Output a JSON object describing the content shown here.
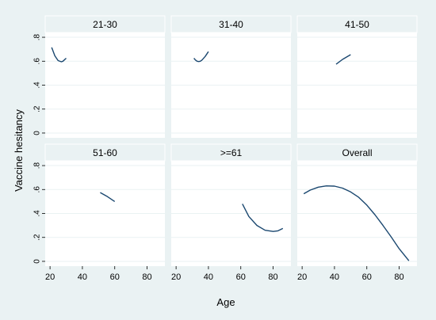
{
  "chart_data": {
    "type": "line",
    "layout": "small-multiples",
    "ylabel": "Vaccine hesitancy",
    "xlabel": "Age",
    "xlim": [
      17,
      91
    ],
    "ylim": [
      -0.04,
      0.84
    ],
    "x_ticks": [
      20,
      40,
      60,
      80
    ],
    "y_ticks": [
      0,
      0.2,
      0.4,
      0.6,
      0.8
    ],
    "x_tick_labels": [
      "20",
      "40",
      "60",
      "80"
    ],
    "y_tick_labels": [
      "0",
      ".2",
      ".4",
      ".6",
      ".8"
    ],
    "grid": true,
    "line_color": "#1a476f",
    "panels": [
      {
        "title": "21-30",
        "x": [
          21,
          23,
          25,
          27,
          28,
          30
        ],
        "y": [
          0.715,
          0.645,
          0.605,
          0.595,
          0.6,
          0.625
        ]
      },
      {
        "title": "31-40",
        "x": [
          31,
          32,
          33,
          34,
          35,
          36,
          38,
          40
        ],
        "y": [
          0.625,
          0.61,
          0.6,
          0.597,
          0.6,
          0.61,
          0.64,
          0.68
        ]
      },
      {
        "title": "41-50",
        "x": [
          41,
          45,
          50
        ],
        "y": [
          0.575,
          0.615,
          0.655
        ]
      },
      {
        "title": "51-60",
        "x": [
          51,
          55,
          60
        ],
        "y": [
          0.575,
          0.545,
          0.5
        ]
      },
      {
        "title": ">=61",
        "x": [
          61,
          65,
          70,
          75,
          80,
          83,
          86
        ],
        "y": [
          0.48,
          0.375,
          0.3,
          0.26,
          0.25,
          0.255,
          0.275
        ]
      },
      {
        "title": "Overall",
        "x": [
          21,
          25,
          30,
          35,
          40,
          45,
          50,
          55,
          60,
          65,
          70,
          75,
          80,
          86
        ],
        "y": [
          0.565,
          0.595,
          0.62,
          0.63,
          0.628,
          0.612,
          0.58,
          0.535,
          0.47,
          0.39,
          0.3,
          0.205,
          0.105,
          0.005
        ]
      }
    ]
  }
}
